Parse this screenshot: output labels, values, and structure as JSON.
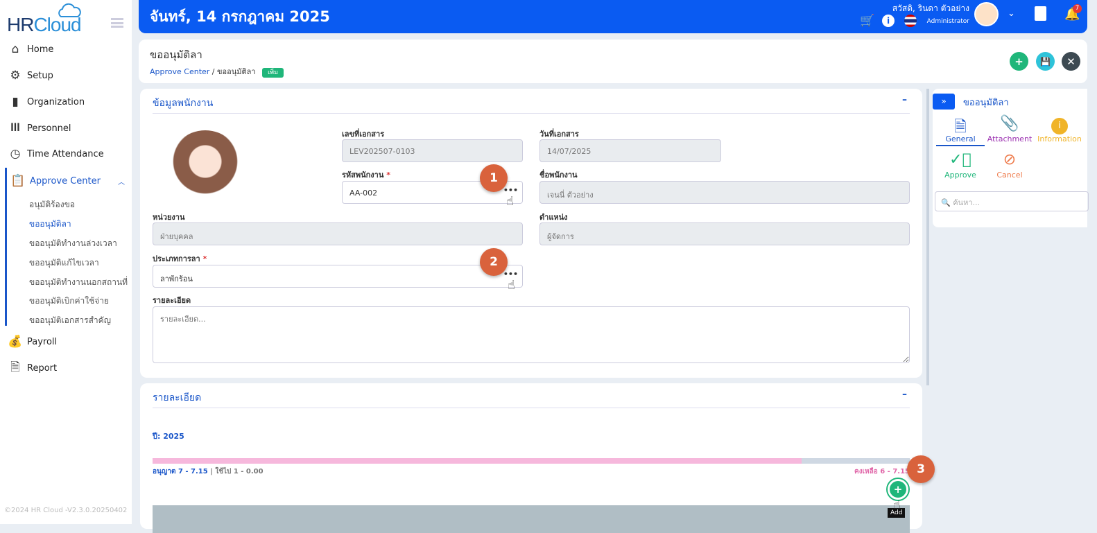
{
  "app": {
    "logo_hr": "HR",
    "logo_cloud": "Cloud",
    "footer": "©2024 HR Cloud -V2.3.0.20250402"
  },
  "sidebar": {
    "items": [
      {
        "label": "Home",
        "icon": "home-icon"
      },
      {
        "label": "Setup",
        "icon": "gear-icon"
      },
      {
        "label": "Organization",
        "icon": "building-icon"
      },
      {
        "label": "Personnel",
        "icon": "people-icon"
      },
      {
        "label": "Time Attendance",
        "icon": "clock-icon"
      },
      {
        "label": "Approve Center",
        "icon": "clipboard-check-icon"
      },
      {
        "label": "Payroll",
        "icon": "money-bag-icon"
      },
      {
        "label": "Report",
        "icon": "report-icon"
      }
    ],
    "sub_items": [
      "อนุมัติร้องขอ",
      "ขออนุมัติลา",
      "ขออนุมัติทำงานล่วงเวลา",
      "ขออนุมัติแก้ไขเวลา",
      "ขออนุมัติทำงานนอกสถานที่",
      "ขออนุมัติเบิกค่าใช้จ่าย",
      "ขออนุมัติเอกสารสำคัญ"
    ]
  },
  "topbar": {
    "date": "จันทร์, 14 กรกฎาคม 2025",
    "greeting": "สวัสดิ, รินดา ตัวอย่าง",
    "role": "Administrator",
    "notif_count": "7"
  },
  "header": {
    "title": "ขออนุมัติลา",
    "crumb_root": "Approve Center",
    "crumb_current": "ขออนุมัติลา",
    "mode_badge": "เพิ่ม"
  },
  "employee": {
    "section_title": "ข้อมูลพนักงาน",
    "doc_no_label": "เลขที่เอกสาร",
    "doc_no": "LEV202507-0103",
    "doc_date_label": "วันที่เอกสาร",
    "doc_date": "14/07/2025",
    "emp_code_label": "รหัสพนักงาน",
    "emp_code": "AA-002",
    "emp_name_label": "ชื่อพนักงาน",
    "emp_name": "เจนนี่ ตัวอย่าง",
    "dept_label": "หน่วยงาน",
    "dept": "ฝ่ายบุคคล",
    "position_label": "ตำแหน่ง",
    "position": "ผู้จัดการ",
    "leave_type_label": "ประเภทการลา",
    "leave_type": "ลาพักร้อน",
    "detail_label": "รายละเอียด",
    "detail_placeholder": "รายละเอียด..."
  },
  "details": {
    "section_title": "รายละเอียด",
    "year": "ปี: 2025",
    "allowed": "อนุญาต 7 - 7.15",
    "used": "ใช้ไป 1 - 0.00",
    "remaining": "คงเหลือ 6 - 7.15",
    "remaining_fraction": 0.857,
    "add_tooltip": "Add"
  },
  "steps": [
    "1",
    "2",
    "3"
  ],
  "right_panel": {
    "title": "ขออนุมัติลา",
    "tabs": [
      {
        "label": "General",
        "color": "#1a56c9"
      },
      {
        "label": "Attachment",
        "color": "#9b2fb0"
      },
      {
        "label": "Information",
        "color": "#f0b429"
      },
      {
        "label": "Approve",
        "color": "#1fb67a"
      },
      {
        "label": "Cancel",
        "color": "#ee7a4a"
      }
    ],
    "search_placeholder": "ค้นหา..."
  }
}
